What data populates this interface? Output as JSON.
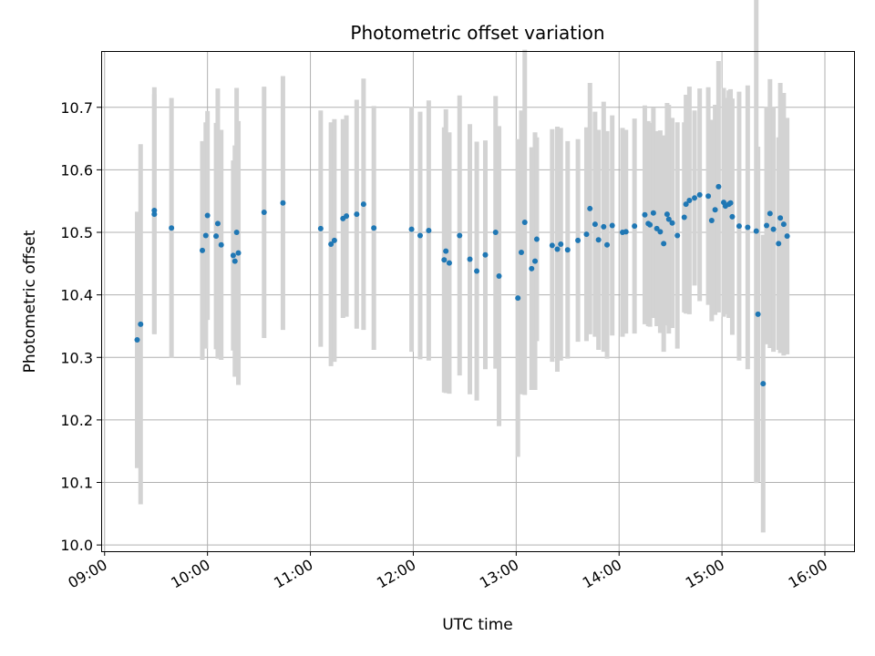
{
  "chart_data": {
    "type": "scatter",
    "title": "Photometric offset variation",
    "xlabel": "UTC time",
    "ylabel": "Photometric offset",
    "x_unit": "time of day (HH:MM, UTC)",
    "xlim": [
      "08:58",
      "16:17"
    ],
    "ylim": [
      9.99,
      10.79
    ],
    "x_ticks": [
      "09:00",
      "10:00",
      "11:00",
      "12:00",
      "13:00",
      "14:00",
      "15:00",
      "16:00"
    ],
    "y_ticks": [
      "10.0",
      "10.1",
      "10.2",
      "10.3",
      "10.4",
      "10.5",
      "10.6",
      "10.7"
    ],
    "grid": true,
    "marker_color": "#1f77b4",
    "errorbar_color": "#d3d3d3",
    "series": [
      {
        "x": [
          "09:19",
          "09:21",
          "09:29",
          "09:29",
          "09:39",
          "09:57",
          "09:59",
          "10:00",
          "10:05",
          "10:06",
          "10:08",
          "10:15",
          "10:16",
          "10:17",
          "10:18",
          "10:33",
          "10:44",
          "11:06",
          "11:12",
          "11:14",
          "11:19",
          "11:21",
          "11:27",
          "11:31",
          "11:37",
          "11:59",
          "12:04",
          "12:09",
          "12:18",
          "12:19",
          "12:21",
          "12:27",
          "12:33",
          "12:37",
          "12:42",
          "12:48",
          "12:50",
          "13:01",
          "13:03",
          "13:05",
          "13:09",
          "13:11",
          "13:12",
          "13:21",
          "13:24",
          "13:26",
          "13:30",
          "13:36",
          "13:41",
          "13:43",
          "13:46",
          "13:48",
          "13:51",
          "13:53",
          "13:56",
          "14:02",
          "14:04",
          "14:09",
          "14:15",
          "14:17",
          "14:18",
          "14:20",
          "14:22",
          "14:24",
          "14:26",
          "14:28",
          "14:29",
          "14:31",
          "14:34",
          "14:38",
          "14:39",
          "14:41",
          "14:44",
          "14:47",
          "14:52",
          "14:54",
          "14:56",
          "14:58",
          "15:01",
          "15:02",
          "15:04",
          "15:05",
          "15:06",
          "15:10",
          "15:15",
          "15:20",
          "15:21",
          "15:24",
          "15:26",
          "15:28",
          "15:30",
          "15:33",
          "15:34",
          "15:36",
          "15:38"
        ],
        "y": [
          10.328,
          10.353,
          10.529,
          10.535,
          10.507,
          10.471,
          10.495,
          10.527,
          10.494,
          10.514,
          10.48,
          10.463,
          10.454,
          10.5,
          10.467,
          10.532,
          10.547,
          10.506,
          10.481,
          10.487,
          10.522,
          10.526,
          10.529,
          10.545,
          10.507,
          10.505,
          10.495,
          10.503,
          10.456,
          10.47,
          10.451,
          10.495,
          10.457,
          10.438,
          10.464,
          10.5,
          10.43,
          10.395,
          10.468,
          10.516,
          10.442,
          10.454,
          10.489,
          10.479,
          10.473,
          10.481,
          10.472,
          10.487,
          10.497,
          10.538,
          10.513,
          10.488,
          10.509,
          10.48,
          10.511,
          10.5,
          10.501,
          10.51,
          10.528,
          10.514,
          10.512,
          10.531,
          10.506,
          10.501,
          10.482,
          10.529,
          10.521,
          10.515,
          10.495,
          10.524,
          10.545,
          10.551,
          10.555,
          10.56,
          10.558,
          10.519,
          10.536,
          10.573,
          10.548,
          10.542,
          10.545,
          10.547,
          10.525,
          10.51,
          10.508,
          10.502,
          10.369,
          10.258,
          10.511,
          10.53,
          10.505,
          10.482,
          10.523,
          10.513,
          10.494
        ],
        "yerr_low": [
          0.205,
          0.288,
          0.192,
          0.197,
          0.208,
          0.175,
          0.181,
          0.167,
          0.181,
          0.216,
          0.184,
          0.152,
          0.185,
          0.231,
          0.211,
          0.201,
          0.203,
          0.189,
          0.195,
          0.194,
          0.159,
          0.161,
          0.183,
          0.201,
          0.195,
          0.196,
          0.198,
          0.208,
          0.212,
          0.227,
          0.209,
          0.224,
          0.216,
          0.207,
          0.183,
          0.218,
          0.24,
          0.254,
          0.227,
          0.276,
          0.194,
          0.206,
          0.163,
          0.186,
          0.196,
          0.186,
          0.174,
          0.162,
          0.171,
          0.201,
          0.18,
          0.176,
          0.2,
          0.182,
          0.176,
          0.167,
          0.163,
          0.172,
          0.175,
          0.164,
          0.163,
          0.168,
          0.156,
          0.162,
          0.173,
          0.178,
          0.183,
          0.168,
          0.181,
          0.152,
          0.175,
          0.182,
          0.14,
          0.17,
          0.174,
          0.161,
          0.168,
          0.201,
          0.183,
          0.173,
          0.182,
          0.182,
          0.189,
          0.215,
          0.227,
          0.403,
          0.268,
          0.238,
          0.19,
          0.215,
          0.196,
          0.17,
          0.216,
          0.21,
          0.189
        ],
        "yerr_high": [
          0.205,
          0.288,
          0.192,
          0.197,
          0.208,
          0.175,
          0.181,
          0.167,
          0.181,
          0.216,
          0.184,
          0.152,
          0.185,
          0.231,
          0.211,
          0.201,
          0.203,
          0.189,
          0.195,
          0.194,
          0.159,
          0.161,
          0.183,
          0.201,
          0.195,
          0.196,
          0.198,
          0.208,
          0.212,
          0.227,
          0.209,
          0.224,
          0.216,
          0.207,
          0.183,
          0.218,
          0.24,
          0.254,
          0.227,
          0.276,
          0.194,
          0.206,
          0.163,
          0.186,
          0.196,
          0.186,
          0.174,
          0.162,
          0.171,
          0.201,
          0.18,
          0.176,
          0.2,
          0.182,
          0.176,
          0.167,
          0.163,
          0.172,
          0.175,
          0.164,
          0.163,
          0.168,
          0.156,
          0.162,
          0.173,
          0.178,
          0.183,
          0.168,
          0.181,
          0.152,
          0.175,
          0.182,
          0.14,
          0.17,
          0.174,
          0.161,
          0.168,
          0.201,
          0.183,
          0.173,
          0.182,
          0.182,
          0.189,
          0.215,
          0.227,
          0.403,
          0.268,
          0.238,
          0.19,
          0.215,
          0.196,
          0.17,
          0.216,
          0.21,
          0.189
        ]
      }
    ]
  }
}
